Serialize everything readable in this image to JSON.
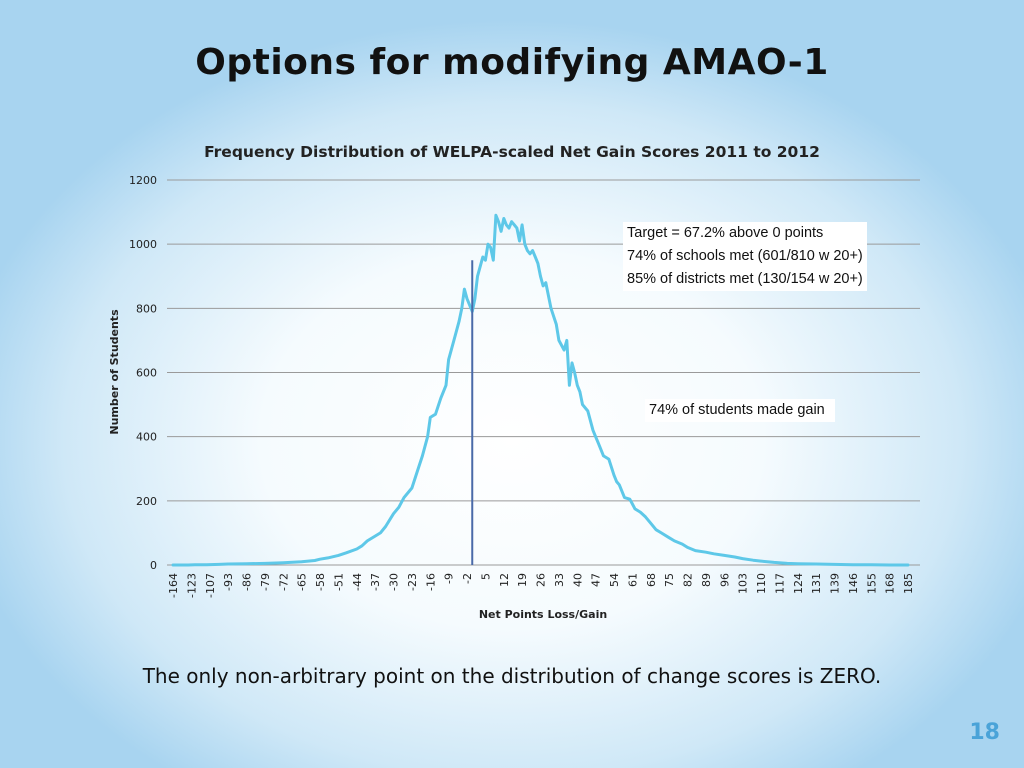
{
  "slide": {
    "title": "Options for modifying AMAO-1",
    "caption": "The only non-arbitrary point on the distribution of change scores is ZERO.",
    "page_number": "18"
  },
  "annotations": {
    "targets": [
      "Target = 67.2% above 0 points",
      "74% of schools met (601/810 w 20+)",
      "85% of districts met (130/154 w 20+)"
    ],
    "students": "74% of students made gain"
  },
  "colors": {
    "line": "#5ec8e8",
    "marker": "#4a6aa8",
    "grid": "#9a9a9a",
    "title": "#111111",
    "page_number": "#4aa3d8"
  },
  "chart_data": {
    "type": "line",
    "title": "Frequency Distribution of WELPA-scaled Net Gain Scores 2011 to 2012",
    "xlabel": "Net Points Loss/Gain",
    "ylabel": "Number of Students",
    "ylim": [
      0,
      1200
    ],
    "yticks": [
      0,
      200,
      400,
      600,
      800,
      1000,
      1200
    ],
    "x_tick_labels": [
      "-164",
      "-123",
      "-107",
      "-93",
      "-86",
      "-79",
      "-72",
      "-65",
      "-58",
      "-51",
      "-44",
      "-37",
      "-30",
      "-23",
      "-16",
      "-9",
      "-2",
      "5",
      "12",
      "19",
      "26",
      "33",
      "40",
      "47",
      "54",
      "61",
      "68",
      "75",
      "82",
      "89",
      "96",
      "103",
      "110",
      "117",
      "124",
      "131",
      "139",
      "146",
      "155",
      "168",
      "185"
    ],
    "grid": "horizontal",
    "vertical_marker_x": 0,
    "series": [
      {
        "x": [
          -164,
          -150,
          -130,
          -120,
          -110,
          -100,
          -93,
          -86,
          -79,
          -72,
          -65,
          -60,
          -58,
          -55,
          -51,
          -48,
          -44,
          -42,
          -40,
          -37,
          -35,
          -33,
          -30,
          -28,
          -26,
          -23,
          -21,
          -19,
          -17,
          -16,
          -14,
          -12,
          -10,
          -9,
          -7,
          -5,
          -4,
          -3,
          -2,
          0,
          1,
          2,
          4,
          5,
          6,
          7,
          8,
          9,
          10,
          11,
          12,
          13,
          14,
          15,
          16,
          17,
          18,
          19,
          20,
          21,
          22,
          23,
          24,
          25,
          26,
          27,
          28,
          30,
          32,
          33,
          35,
          36,
          37,
          38,
          39,
          40,
          41,
          42,
          44,
          46,
          47,
          48,
          50,
          52,
          54,
          55,
          56,
          57,
          58,
          60,
          61,
          62,
          64,
          66,
          68,
          70,
          72,
          75,
          77,
          80,
          82,
          85,
          89,
          92,
          96,
          100,
          103,
          107,
          110,
          115,
          120,
          124,
          131,
          139,
          146,
          155,
          168,
          185
        ],
        "y": [
          0,
          0,
          0,
          1,
          1,
          2,
          3,
          4,
          5,
          7,
          10,
          14,
          18,
          22,
          30,
          38,
          50,
          60,
          75,
          90,
          100,
          120,
          160,
          180,
          210,
          240,
          290,
          340,
          400,
          460,
          470,
          520,
          560,
          640,
          700,
          760,
          800,
          860,
          830,
          790,
          830,
          900,
          960,
          950,
          1000,
          990,
          950,
          1090,
          1070,
          1040,
          1080,
          1060,
          1050,
          1070,
          1060,
          1050,
          1010,
          1060,
          1000,
          980,
          970,
          980,
          960,
          940,
          900,
          870,
          880,
          800,
          750,
          700,
          670,
          700,
          560,
          630,
          600,
          560,
          540,
          500,
          480,
          420,
          400,
          380,
          340,
          330,
          280,
          260,
          250,
          230,
          210,
          205,
          190,
          175,
          165,
          150,
          130,
          110,
          100,
          85,
          75,
          65,
          55,
          45,
          40,
          35,
          30,
          25,
          20,
          15,
          12,
          8,
          5,
          4,
          3,
          2,
          1,
          1,
          0,
          0
        ]
      }
    ]
  }
}
